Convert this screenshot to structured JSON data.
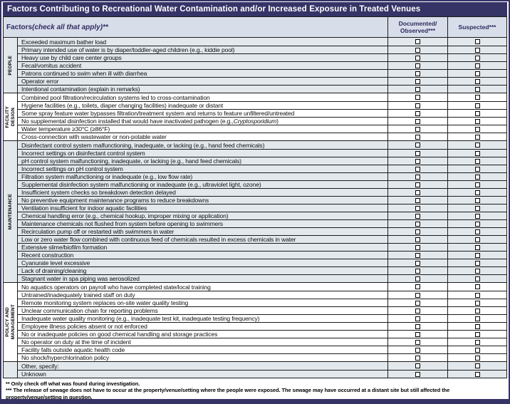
{
  "title": "Factors Contributing to Recreational Water Contamination and/or Increased Exposure in Treated Venues",
  "header": {
    "factors_bold": "Factors",
    "factors_italic": " (check all that apply)**",
    "col_documented_line1": "Documented/",
    "col_documented_line2": "Observed***",
    "col_suspected": "Suspected***"
  },
  "colors": {
    "frame_and_title_bar": "#363367",
    "header_text": "#2e2b5e",
    "shaded_row": "#e2e8ec",
    "subheader_bg": "#d7deea",
    "grid_line": "#1b1b1b"
  },
  "sections": [
    {
      "name": "people",
      "label_lines": [
        "PEOPLE"
      ],
      "shaded": true,
      "rows": [
        "Exceeded maximum bather load",
        "Primary intended use of water is by diaper/toddler-aged children (e.g., kiddie pool)",
        "Heavy use by child care center groups",
        "Fecal/vomitus accident",
        "Patrons continued to swim when ill with diarrhea",
        "Operator error",
        "Intentional contamination (explain in remarks)"
      ]
    },
    {
      "name": "facility-design",
      "label_lines": [
        "FACILITY",
        "DESIGN"
      ],
      "shaded": false,
      "rows": [
        "Combined pool filtration/recirculation systems led to cross-contamination",
        "Hygiene facilities (e.g., toilets, diaper changing facilities) inadequate or distant",
        "Some spray feature water bypasses filtration/treatment system and returns to feature unfiltered/untreated",
        {
          "segments": [
            {
              "text": "No supplemental disinfection installed that would have inactivated pathogen  (e.g., "
            },
            {
              "text": "Cryptosporidium",
              "italic": true
            },
            {
              "text": ")"
            }
          ]
        },
        "Water temperature ≥30°C (≥86°F)",
        "Cross-connection with wastewater or non-potable water"
      ]
    },
    {
      "name": "maintenance",
      "label_lines": [
        "MAINTENANCE"
      ],
      "shaded": true,
      "rows": [
        "Disinfectant control system malfunctioning, inadequate, or lacking (e.g., hand feed chemicals)",
        "Incorrect settings on disinfectant control system",
        "pH control system malfunctioning, inadequate, or lacking (e.g., hand feed chemicals)",
        "Incorrect settings on pH control system",
        "Filtration system malfunctioning or inadequate (e.g., low flow rate)",
        "Supplemental disinfection system malfunctioning or inadequate (e.g., ultraviolet light, ozone)",
        "Insufficient system checks so breakdown detection delayed",
        "No preventive equipment maintenance programs to reduce breakdowns",
        "Ventilation insufficient for indoor aquatic facilities",
        "Chemical handling error (e.g., chemical hookup, improper mixing or application)",
        "Maintenance chemicals not flushed from system before opening to swimmers",
        "Recirculation pump off or restarted with swimmers in water",
        "Low or zero water flow combined with continuous feed of chemicals resulted in excess chemicals in water",
        "Extensive slime/biofilm formation",
        "Recent construction",
        "Cyanurate level excessive",
        "Lack of draining/cleaning",
        "Stagnant water in spa piping was aerosolized"
      ]
    },
    {
      "name": "policy-and-management",
      "label_lines": [
        "POLICY AND",
        "MANAGEMENT"
      ],
      "shaded": false,
      "rows": [
        "No aquatics operators on payroll who have completed state/local training",
        "Untrained/inadequately trained staff on duty",
        "Remote monitoring system replaces on-site water quality testing",
        "Unclear communication chain for reporting problems",
        "Inadequate water quality monitoring (e.g., inadequate test kit, inadequate testing frequency)",
        "Employee illness policies absent or not enforced",
        "No or inadequate policies on good chemical handling and storage practices",
        "No operator on duty at the time of incident",
        "Facility falls outside aquatic health code",
        "No shock/hyperchlorination policy"
      ]
    },
    {
      "name": "other",
      "label_lines": [],
      "shaded": true,
      "rows": [
        "Other, specify:",
        "Unknown"
      ]
    }
  ],
  "checkboxes": {
    "columns": [
      "documented-observed",
      "suspected"
    ],
    "default_state": "unchecked"
  },
  "footnotes": [
    "** Only check off what was found during investigation.",
    "*** The release of sewage does not have to occur at the property/venue/setting where the people were exposed. The sewage may have occurred at a distant site but still affected the property/venue/setting in question."
  ]
}
